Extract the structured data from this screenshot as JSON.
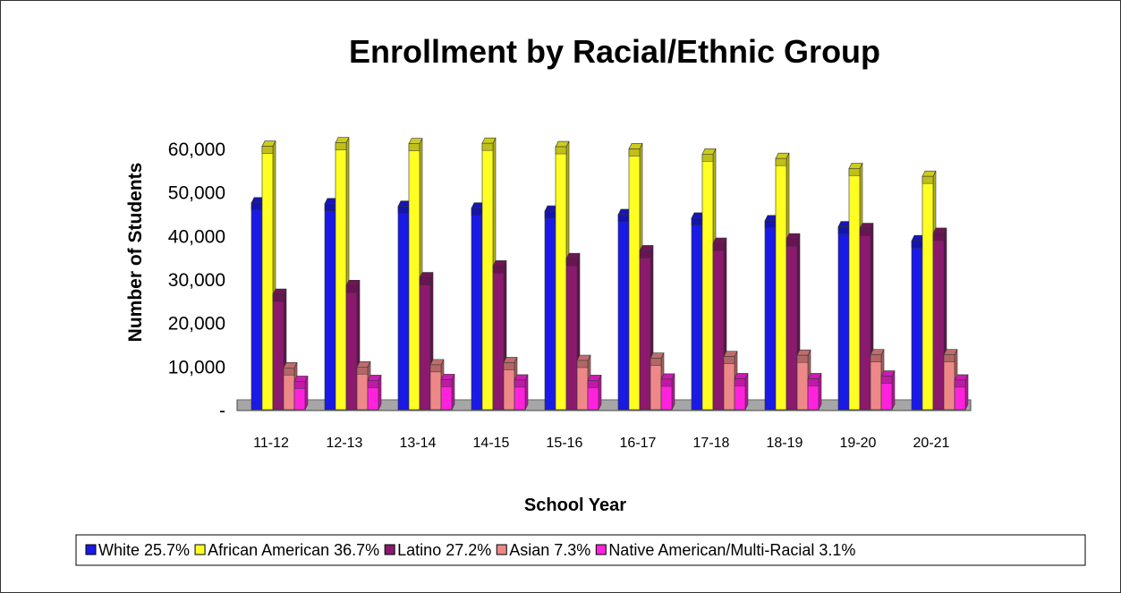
{
  "chart_data": {
    "type": "bar",
    "title": "Enrollment by Racial/Ethnic Group",
    "xlabel": "School Year",
    "ylabel": "Number of Students",
    "categories": [
      "11-12",
      "12-13",
      "13-14",
      "14-15",
      "15-16",
      "16-17",
      "17-18",
      "18-19",
      "19-20",
      "20-21"
    ],
    "yticks": [
      "-",
      "10,000",
      "20,000",
      "30,000",
      "40,000",
      "50,000",
      "60,000"
    ],
    "ylim": [
      0,
      60000
    ],
    "series": [
      {
        "name": "White 25.7%",
        "color": "#1a1ae6",
        "values": [
          47500,
          47300,
          46700,
          46300,
          45600,
          44800,
          44000,
          43400,
          42000,
          38800
        ]
      },
      {
        "name": "African American 36.7%",
        "color": "#ffff22",
        "values": [
          60500,
          61300,
          61100,
          61200,
          60400,
          59900,
          58700,
          57700,
          55400,
          53600
        ]
      },
      {
        "name": "Latino 27.2%",
        "color": "#8b1a6e",
        "values": [
          26500,
          28500,
          30300,
          33000,
          34700,
          36500,
          38200,
          39200,
          41600,
          40500
        ]
      },
      {
        "name": "Asian 7.3%",
        "color": "#ee8888",
        "values": [
          9600,
          9800,
          10300,
          10800,
          11300,
          11800,
          12200,
          12500,
          12600,
          12600
        ]
      },
      {
        "name": "Native American/Multi-Racial 3.1%",
        "color": "#ff22dd",
        "values": [
          6500,
          6700,
          6900,
          6800,
          6700,
          7000,
          7100,
          7100,
          7700,
          6800
        ]
      }
    ],
    "legend": "bottom",
    "grid": false
  }
}
